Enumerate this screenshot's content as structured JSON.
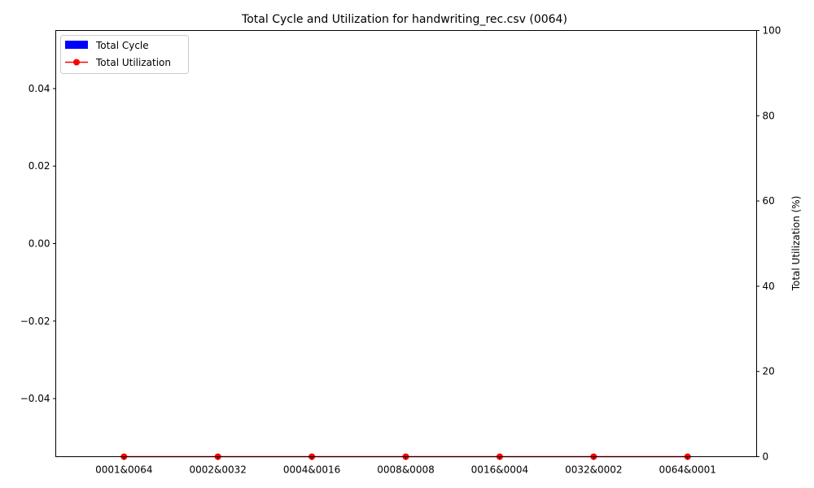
{
  "chart_data": {
    "type": "bar",
    "title": "Total Cycle and Utilization for handwriting_rec.csv (0064)",
    "xlabel": "",
    "categories": [
      "0001&0064",
      "0002&0032",
      "0004&0016",
      "0008&0008",
      "0016&0004",
      "0032&0002",
      "0064&0001"
    ],
    "left_axis": {
      "label": "",
      "ylim": [
        -0.055,
        0.055
      ],
      "ticks": [
        -0.04,
        -0.02,
        0.0,
        0.02,
        0.04
      ],
      "tick_labels": [
        "−0.04",
        "−0.02",
        "0.00",
        "0.02",
        "0.04"
      ]
    },
    "right_axis": {
      "label": "Total Utilization (%)",
      "ylim": [
        0,
        100
      ],
      "ticks": [
        0,
        20,
        40,
        60,
        80,
        100
      ],
      "tick_labels": [
        "0",
        "20",
        "40",
        "60",
        "80",
        "100"
      ]
    },
    "series": [
      {
        "name": "Total Cycle",
        "kind": "bar",
        "axis": "left",
        "color": "#0000ff",
        "values": [
          0,
          0,
          0,
          0,
          0,
          0,
          0
        ]
      },
      {
        "name": "Total Utilization",
        "kind": "line",
        "axis": "right",
        "color": "#ff0000",
        "marker": "circle",
        "values": [
          0,
          0,
          0,
          0,
          0,
          0,
          0
        ]
      }
    ],
    "legend": {
      "position": "top-left"
    },
    "grid": false
  }
}
